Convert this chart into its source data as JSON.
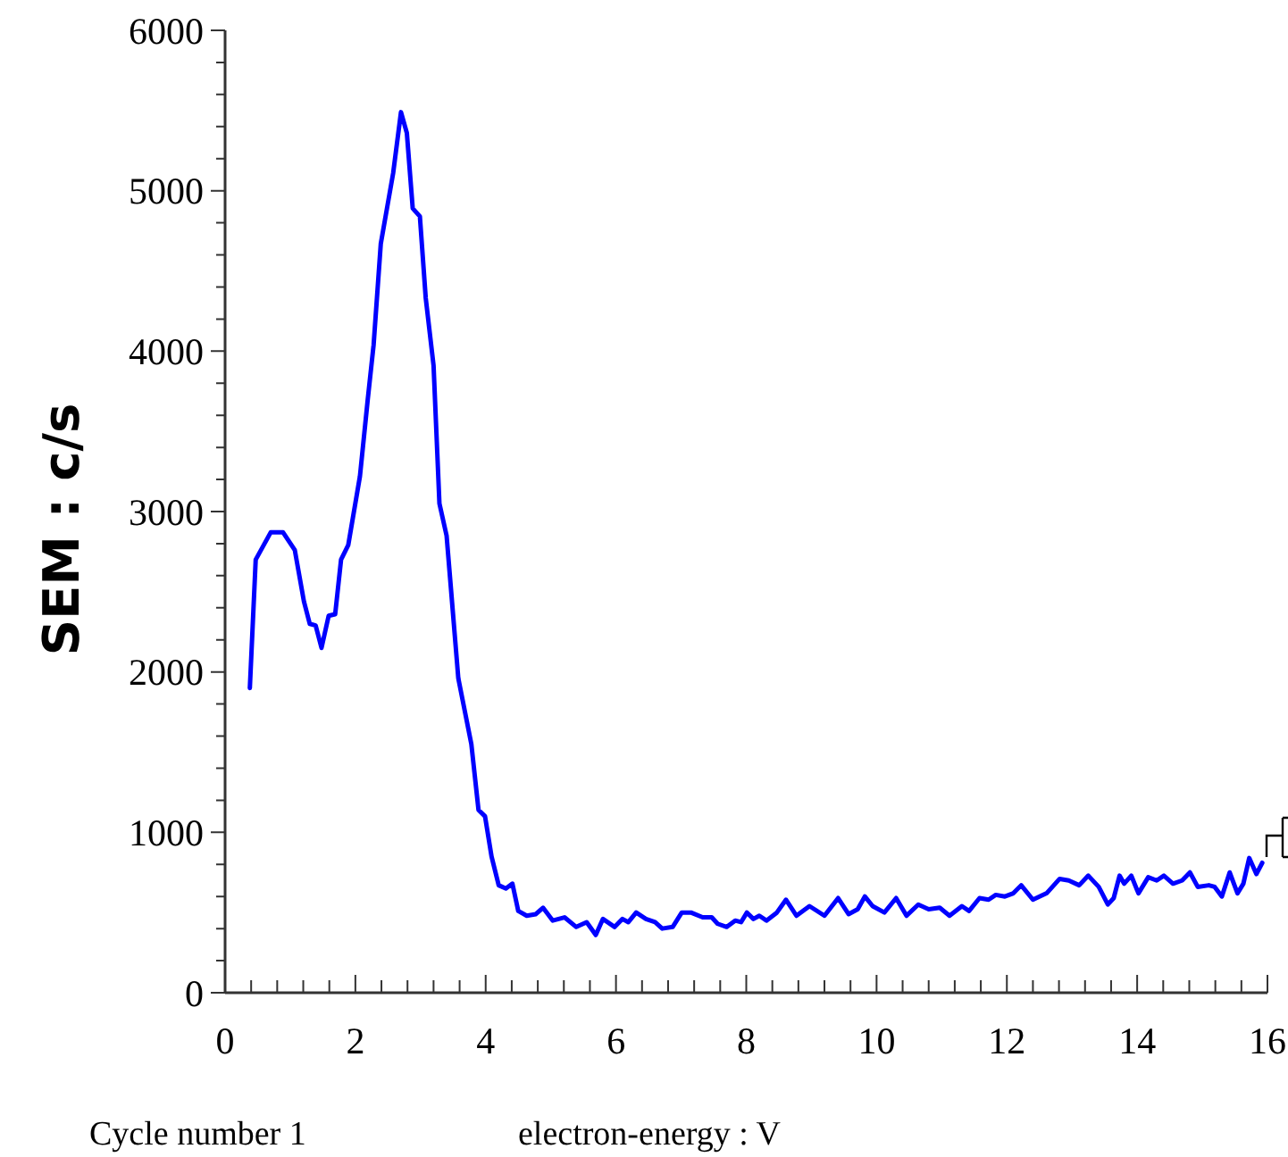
{
  "chart_data": {
    "type": "line",
    "xlabel": "electron-energy : V",
    "ylabel": "SEM : c/s",
    "annotations": [
      "Cycle number 1"
    ],
    "xlim": [
      0,
      16
    ],
    "ylim": [
      0,
      6000
    ],
    "xticks": [
      0,
      {
        "value": 0.4,
        "label": null
      },
      {
        "value": 0.8,
        "label": null
      },
      {
        "value": 1.2,
        "label": null
      },
      {
        "value": 1.6,
        "label": null
      },
      2,
      {
        "value": 2.4,
        "label": null
      },
      {
        "value": 2.8,
        "label": null
      },
      {
        "value": 3.2,
        "label": null
      },
      {
        "value": 3.6,
        "label": null
      },
      4,
      {
        "value": 4.4,
        "label": null
      },
      {
        "value": 4.8,
        "label": null
      },
      {
        "value": 5.2,
        "label": null
      },
      {
        "value": 5.6,
        "label": null
      },
      6,
      {
        "value": 6.4,
        "label": null
      },
      {
        "value": 6.8,
        "label": null
      },
      {
        "value": 7.2,
        "label": null
      },
      {
        "value": 7.6,
        "label": null
      },
      8,
      {
        "value": 8.4,
        "label": null
      },
      {
        "value": 8.8,
        "label": null
      },
      {
        "value": 9.2,
        "label": null
      },
      {
        "value": 9.6,
        "label": null
      },
      10,
      {
        "value": 10.4,
        "label": null
      },
      {
        "value": 10.8,
        "label": null
      },
      {
        "value": 11.2,
        "label": null
      },
      {
        "value": 11.6,
        "label": null
      },
      12,
      {
        "value": 12.4,
        "label": null
      },
      {
        "value": 12.8,
        "label": null
      },
      {
        "value": 13.2,
        "label": null
      },
      {
        "value": 13.6,
        "label": null
      },
      14,
      {
        "value": 14.4,
        "label": null
      },
      {
        "value": 14.8,
        "label": null
      },
      {
        "value": 15.2,
        "label": null
      },
      {
        "value": 15.6,
        "label": null
      },
      16
    ],
    "yticks": [
      0,
      {
        "value": 200,
        "label": null
      },
      {
        "value": 400,
        "label": null
      },
      {
        "value": 600,
        "label": null
      },
      {
        "value": 800,
        "label": null
      },
      1000,
      {
        "value": 1200,
        "label": null
      },
      {
        "value": 1400,
        "label": null
      },
      {
        "value": 1600,
        "label": null
      },
      {
        "value": 1800,
        "label": null
      },
      2000,
      {
        "value": 2200,
        "label": null
      },
      {
        "value": 2400,
        "label": null
      },
      {
        "value": 2600,
        "label": null
      },
      {
        "value": 2800,
        "label": null
      },
      3000,
      {
        "value": 3200,
        "label": null
      },
      {
        "value": 3400,
        "label": null
      },
      {
        "value": 3600,
        "label": null
      },
      {
        "value": 3800,
        "label": null
      },
      4000,
      {
        "value": 4200,
        "label": null
      },
      {
        "value": 4400,
        "label": null
      },
      {
        "value": 4600,
        "label": null
      },
      {
        "value": 4800,
        "label": null
      },
      5000,
      {
        "value": 5200,
        "label": null
      },
      {
        "value": 5400,
        "label": null
      },
      {
        "value": 5600,
        "label": null
      },
      {
        "value": 5800,
        "label": null
      },
      6000
    ],
    "grid": false,
    "marker": "none",
    "line_style": "solid",
    "series": [
      {
        "color": "#0000ff",
        "x": [
          0.38,
          0.47,
          0.7,
          0.89,
          1.07,
          1.21,
          1.3,
          1.39,
          1.48,
          1.59,
          1.69,
          1.78,
          1.89,
          2.07,
          2.19,
          2.28,
          2.39,
          2.58,
          2.7,
          2.79,
          2.88,
          2.99,
          3.08,
          3.2,
          3.29,
          3.4,
          3.58,
          3.78,
          3.89,
          3.99,
          4.09,
          4.2,
          4.31,
          4.41,
          4.5,
          4.63,
          4.77,
          4.88,
          5.03,
          5.21,
          5.39,
          5.55,
          5.69,
          5.8,
          5.98,
          6.1,
          6.19,
          6.31,
          6.46,
          6.6,
          6.71,
          6.87,
          7.01,
          7.15,
          7.33,
          7.47,
          7.56,
          7.7,
          7.83,
          7.92,
          8.01,
          8.11,
          8.2,
          8.31,
          8.47,
          8.61,
          8.77,
          8.97,
          9.2,
          9.41,
          9.57,
          9.71,
          9.82,
          9.94,
          10.12,
          10.3,
          10.46,
          10.64,
          10.8,
          10.97,
          11.12,
          11.31,
          11.42,
          11.58,
          11.72,
          11.83,
          11.97,
          12.1,
          12.22,
          12.4,
          12.61,
          12.81,
          12.95,
          13.11,
          13.25,
          13.41,
          13.55,
          13.64,
          13.73,
          13.8,
          13.91,
          14.02,
          14.17,
          14.3,
          14.41,
          14.55,
          14.69,
          14.81,
          14.93,
          15.1,
          15.19,
          15.3,
          15.42,
          15.54,
          15.63,
          15.72,
          15.83,
          15.92
        ],
        "values": [
          1900,
          2700,
          2870,
          2870,
          2760,
          2440,
          2300,
          2290,
          2150,
          2350,
          2360,
          2700,
          2790,
          3220,
          3700,
          4040,
          4670,
          5110,
          5490,
          5360,
          4890,
          4840,
          4330,
          3910,
          3050,
          2850,
          1960,
          1550,
          1140,
          1100,
          850,
          670,
          650,
          680,
          510,
          480,
          490,
          530,
          450,
          470,
          410,
          440,
          360,
          460,
          410,
          460,
          440,
          500,
          460,
          440,
          400,
          410,
          500,
          500,
          470,
          470,
          430,
          410,
          450,
          440,
          500,
          460,
          480,
          450,
          500,
          580,
          480,
          540,
          480,
          590,
          490,
          520,
          600,
          540,
          500,
          590,
          480,
          550,
          520,
          530,
          480,
          540,
          510,
          590,
          580,
          610,
          600,
          620,
          670,
          580,
          620,
          710,
          700,
          670,
          730,
          660,
          550,
          590,
          730,
          680,
          730,
          620,
          720,
          700,
          730,
          680,
          700,
          750,
          660,
          670,
          660,
          600,
          750,
          620,
          680,
          840,
          740,
          810
        ]
      }
    ]
  }
}
